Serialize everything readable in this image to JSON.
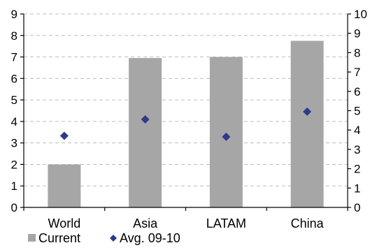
{
  "chart_data": {
    "type": "bar",
    "categories": [
      "World",
      "Asia",
      "LATAM",
      "China"
    ],
    "series": [
      {
        "name": "Current",
        "kind": "bar",
        "axis": "left",
        "values": [
          2.0,
          6.95,
          7.0,
          7.75
        ],
        "color": "#a6a6a6"
      },
      {
        "name": "Avg. 09-10",
        "kind": "marker",
        "axis": "right",
        "marker": "diamond",
        "values": [
          3.7,
          4.55,
          3.65,
          4.95
        ],
        "color": "#2e3a8c"
      }
    ],
    "left_axis": {
      "ylim": [
        0,
        9
      ],
      "ticks": [
        "0",
        "1",
        "2",
        "3",
        "4",
        "5",
        "6",
        "7",
        "8",
        "9"
      ]
    },
    "right_axis": {
      "ylim": [
        0,
        10
      ],
      "ticks": [
        "0",
        "1",
        "2",
        "3",
        "4",
        "5",
        "6",
        "7",
        "8",
        "9",
        "10"
      ]
    },
    "title": "",
    "xlabel": "",
    "ylabel": "",
    "grid": true,
    "legend": "bottom-left"
  }
}
